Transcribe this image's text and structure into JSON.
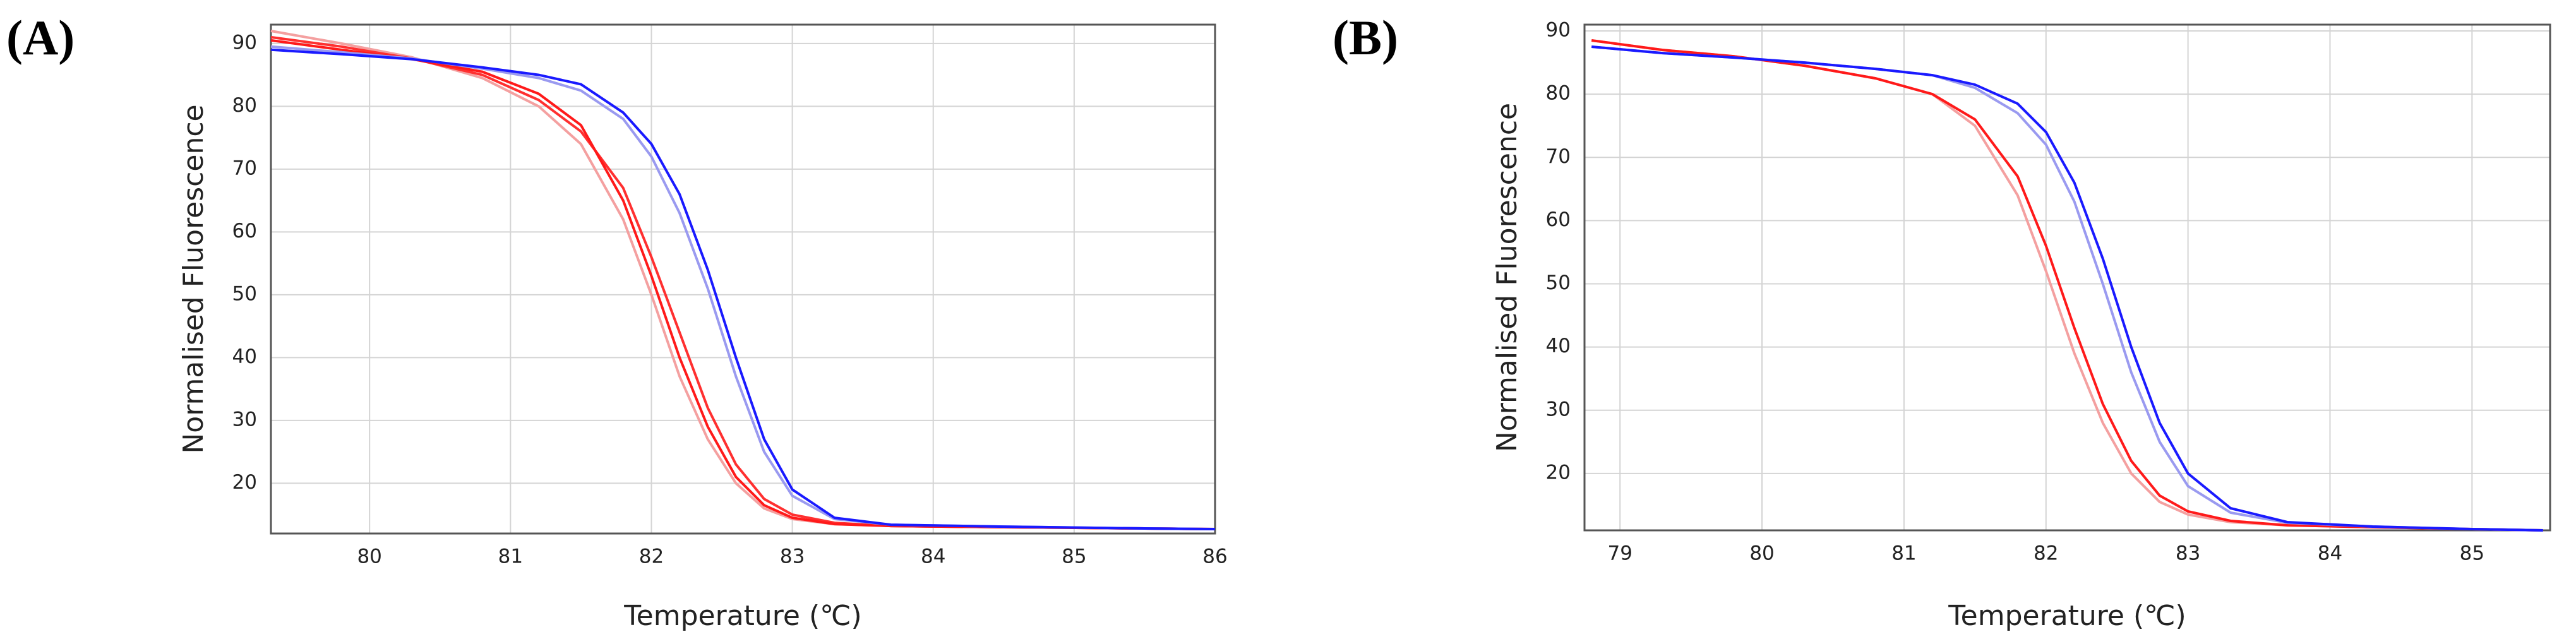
{
  "chart_data": [
    {
      "type": "line",
      "label": "(A)",
      "x_label": "Temperature (℃)",
      "y_label": "Normalised Fluorescence",
      "x": [
        79.3,
        79.8,
        80.3,
        80.8,
        81.2,
        81.5,
        81.8,
        82.0,
        82.2,
        82.4,
        82.6,
        82.8,
        83.0,
        83.3,
        83.7,
        84.5,
        85.5,
        86.0
      ],
      "series": [
        {
          "color": "#f4a0a0",
          "values": [
            92,
            90,
            87.8,
            84.5,
            80,
            74,
            62,
            50,
            37,
            27,
            20,
            16,
            14.3,
            13.5,
            13.2,
            13,
            12.8,
            12.7
          ]
        },
        {
          "color": "#ff3030",
          "values": [
            91,
            89.5,
            87.6,
            85,
            81,
            76,
            67,
            56,
            44,
            32,
            23,
            17.5,
            15,
            13.7,
            13.2,
            13,
            12.8,
            12.7
          ]
        },
        {
          "color": "#ff1a1a",
          "values": [
            90.5,
            89,
            87.5,
            85.5,
            82,
            77,
            65,
            53,
            40,
            29,
            21,
            16.5,
            14.5,
            13.5,
            13.2,
            13,
            12.8,
            12.7
          ]
        },
        {
          "color": "#9a9af0",
          "values": [
            89.5,
            88.6,
            87.6,
            86,
            84.5,
            82.5,
            78,
            72,
            63,
            51,
            37,
            25,
            18,
            14.3,
            13.4,
            13.1,
            12.8,
            12.7
          ]
        },
        {
          "color": "#1a1aff",
          "values": [
            89,
            88.3,
            87.5,
            86.2,
            85,
            83.5,
            79,
            74,
            66,
            54,
            40,
            27,
            19,
            14.5,
            13.4,
            13.1,
            12.8,
            12.7
          ]
        }
      ],
      "xlim": [
        79.3,
        86.0
      ],
      "xticks": [
        80,
        81,
        82,
        83,
        84,
        85,
        86
      ],
      "ylim": [
        12,
        93
      ],
      "yticks": [
        20,
        30,
        40,
        50,
        60,
        70,
        80,
        90
      ],
      "grid": true
    },
    {
      "type": "line",
      "label": "(B)",
      "x_label": "Temperature (℃)",
      "y_label": "Normalised Fluorescence",
      "x": [
        78.8,
        79.3,
        79.8,
        80.3,
        80.8,
        81.2,
        81.5,
        81.8,
        82.0,
        82.2,
        82.4,
        82.6,
        82.8,
        83.0,
        83.3,
        83.7,
        84.3,
        85.0,
        85.5
      ],
      "series": [
        {
          "color": "#f4a0a0",
          "values": [
            88.5,
            87,
            86,
            84.5,
            82.5,
            80,
            75,
            64,
            52,
            39,
            28,
            20,
            15.5,
            13.5,
            12.3,
            11.8,
            11.5,
            11.2,
            11
          ]
        },
        {
          "color": "#ff1a1a",
          "values": [
            88.5,
            87,
            86,
            84.5,
            82.5,
            80,
            76,
            67,
            56,
            43,
            31,
            22,
            16.5,
            14,
            12.5,
            11.8,
            11.5,
            11.2,
            11
          ]
        },
        {
          "color": "#9a9af0",
          "values": [
            87.5,
            86.5,
            85.8,
            85,
            84,
            83,
            81,
            77,
            72,
            63,
            50,
            36,
            25,
            18,
            13.8,
            12.2,
            11.6,
            11.2,
            11
          ]
        },
        {
          "color": "#1a1aff",
          "values": [
            87.5,
            86.5,
            85.8,
            85,
            84,
            83,
            81.5,
            78.5,
            74,
            66,
            54,
            40,
            28,
            20,
            14.5,
            12.3,
            11.6,
            11.2,
            11
          ]
        }
      ],
      "xlim": [
        78.75,
        85.55
      ],
      "xticks": [
        79,
        80,
        81,
        82,
        83,
        84,
        85
      ],
      "ylim": [
        11,
        91
      ],
      "yticks": [
        20,
        30,
        40,
        50,
        60,
        70,
        80,
        90
      ],
      "grid": true
    }
  ]
}
